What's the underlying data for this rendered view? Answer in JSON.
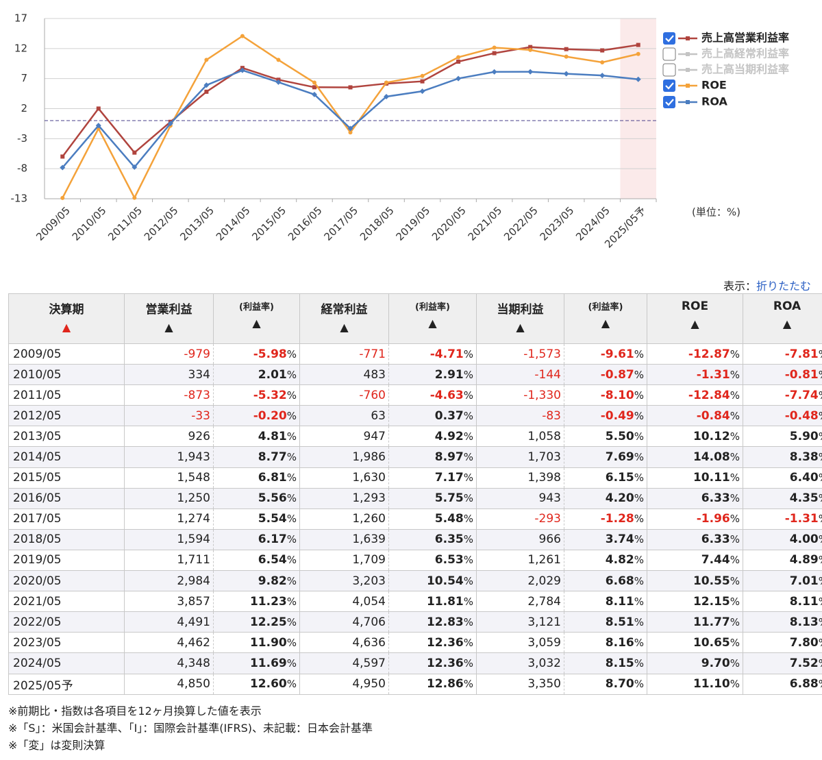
{
  "chart_data": {
    "type": "line",
    "categories": [
      "2009/05",
      "2010/05",
      "2011/05",
      "2012/05",
      "2013/05",
      "2014/05",
      "2015/05",
      "2016/05",
      "2017/05",
      "2018/05",
      "2019/05",
      "2020/05",
      "2021/05",
      "2022/05",
      "2023/05",
      "2024/05",
      "2025/05予"
    ],
    "series": [
      {
        "name": "売上高営業利益率",
        "color": "#b0443e",
        "marker": "square",
        "checked": true,
        "values": [
          -5.98,
          2.01,
          -5.32,
          -0.2,
          4.81,
          8.77,
          6.81,
          5.56,
          5.54,
          6.17,
          6.54,
          9.82,
          11.23,
          12.25,
          11.9,
          11.69,
          12.6
        ]
      },
      {
        "name": "売上高経常利益率",
        "color": "#c4c4c4",
        "checked": false
      },
      {
        "name": "売上高当期利益率",
        "color": "#c4c4c4",
        "checked": false
      },
      {
        "name": "ROE",
        "color": "#f4a23a",
        "marker": "circle",
        "checked": true,
        "values": [
          -12.87,
          -1.31,
          -12.84,
          -0.84,
          10.12,
          14.08,
          10.11,
          6.33,
          -1.96,
          6.33,
          7.44,
          10.55,
          12.15,
          11.77,
          10.65,
          9.7,
          11.1
        ]
      },
      {
        "name": "ROA",
        "color": "#4b7dc0",
        "marker": "diamond",
        "checked": true,
        "values": [
          -7.81,
          -0.81,
          -7.74,
          -0.48,
          5.9,
          8.38,
          6.4,
          4.35,
          -1.31,
          4.0,
          4.89,
          7.01,
          8.11,
          8.13,
          7.8,
          7.52,
          6.88
        ]
      }
    ],
    "ylim": [
      -13,
      17
    ],
    "yticks": [
      17,
      12,
      7,
      2,
      -3,
      -8,
      -13
    ],
    "grid": true,
    "reference_line": 0,
    "shaded_category": "2025/05予",
    "unit_label": "(単位：%)"
  },
  "display": {
    "label": "表示：",
    "link": "折りたたむ"
  },
  "table": {
    "sort_icon": "▲",
    "unit": "%",
    "columns": [
      "決算期",
      "営業利益",
      "(利益率)",
      "経常利益",
      "(利益率)",
      "当期利益",
      "(利益率)",
      "ROE",
      "ROA"
    ],
    "rows": [
      [
        "2009/05",
        "-979",
        "-5.98",
        "-771",
        "-4.71",
        "-1,573",
        "-9.61",
        "-12.87",
        "-7.81"
      ],
      [
        "2010/05",
        "334",
        "2.01",
        "483",
        "2.91",
        "-144",
        "-0.87",
        "-1.31",
        "-0.81"
      ],
      [
        "2011/05",
        "-873",
        "-5.32",
        "-760",
        "-4.63",
        "-1,330",
        "-8.10",
        "-12.84",
        "-7.74"
      ],
      [
        "2012/05",
        "-33",
        "-0.20",
        "63",
        "0.37",
        "-83",
        "-0.49",
        "-0.84",
        "-0.48"
      ],
      [
        "2013/05",
        "926",
        "4.81",
        "947",
        "4.92",
        "1,058",
        "5.50",
        "10.12",
        "5.90"
      ],
      [
        "2014/05",
        "1,943",
        "8.77",
        "1,986",
        "8.97",
        "1,703",
        "7.69",
        "14.08",
        "8.38"
      ],
      [
        "2015/05",
        "1,548",
        "6.81",
        "1,630",
        "7.17",
        "1,398",
        "6.15",
        "10.11",
        "6.40"
      ],
      [
        "2016/05",
        "1,250",
        "5.56",
        "1,293",
        "5.75",
        "943",
        "4.20",
        "6.33",
        "4.35"
      ],
      [
        "2017/05",
        "1,274",
        "5.54",
        "1,260",
        "5.48",
        "-293",
        "-1.28",
        "-1.96",
        "-1.31"
      ],
      [
        "2018/05",
        "1,594",
        "6.17",
        "1,639",
        "6.35",
        "966",
        "3.74",
        "6.33",
        "4.00"
      ],
      [
        "2019/05",
        "1,711",
        "6.54",
        "1,709",
        "6.53",
        "1,261",
        "4.82",
        "7.44",
        "4.89"
      ],
      [
        "2020/05",
        "2,984",
        "9.82",
        "3,203",
        "10.54",
        "2,029",
        "6.68",
        "10.55",
        "7.01"
      ],
      [
        "2021/05",
        "3,857",
        "11.23",
        "4,054",
        "11.81",
        "2,784",
        "8.11",
        "12.15",
        "8.11"
      ],
      [
        "2022/05",
        "4,491",
        "12.25",
        "4,706",
        "12.83",
        "3,121",
        "8.51",
        "11.77",
        "8.13"
      ],
      [
        "2023/05",
        "4,462",
        "11.90",
        "4,636",
        "12.36",
        "3,059",
        "8.16",
        "10.65",
        "7.80"
      ],
      [
        "2024/05",
        "4,348",
        "11.69",
        "4,597",
        "12.36",
        "3,032",
        "8.15",
        "9.70",
        "7.52"
      ],
      [
        "2025/05予",
        "4,850",
        "12.60",
        "4,950",
        "12.86",
        "3,350",
        "8.70",
        "11.10",
        "6.88"
      ]
    ]
  },
  "notes": [
    "※前期比・指数は各項目を12ヶ月換算した値を表示",
    "※「S」：米国会計基準、「I」：国際会計基準(IFRS)、未記載：日本会計基準",
    "※「変」は変則決算"
  ]
}
